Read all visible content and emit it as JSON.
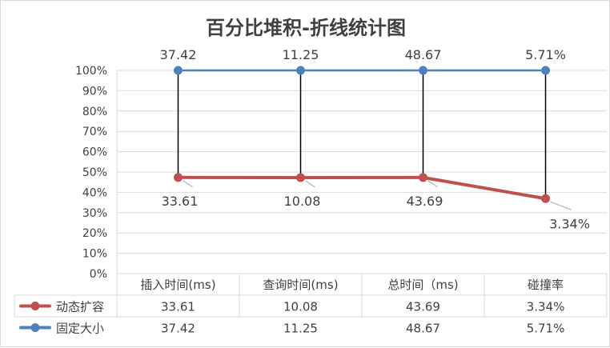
{
  "chart_data": {
    "type": "line",
    "title": "百分比堆积-折线统计图",
    "categories": [
      "插入时间(ms)",
      "查询时间(ms)",
      "总时间（ms)",
      "碰撞率"
    ],
    "y_ticks": [
      "0%",
      "10%",
      "20%",
      "30%",
      "40%",
      "50%",
      "60%",
      "70%",
      "80%",
      "90%",
      "100%"
    ],
    "ylim": [
      0,
      100
    ],
    "grid": true,
    "legend": "data-table-left",
    "stacking": "percent",
    "series": [
      {
        "name": "动态扩容",
        "values": [
          33.61,
          10.08,
          43.69,
          3.34
        ],
        "labels": [
          "33.61",
          "10.08",
          "43.69",
          "3.34%"
        ],
        "color": "#c0504d"
      },
      {
        "name": "固定大小",
        "values": [
          37.42,
          11.25,
          48.67,
          5.71
        ],
        "labels": [
          "37.42",
          "11.25",
          "48.67",
          "5.71%"
        ],
        "color": "#4f81bd"
      }
    ],
    "drop_line_color": "#000000",
    "grid_color": "#d9d9d9",
    "text_color": "#404040"
  }
}
